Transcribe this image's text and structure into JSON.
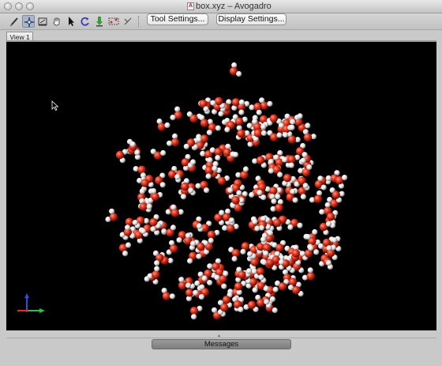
{
  "window": {
    "title": "box.xyz – Avogadro",
    "doc_icon_letter": "A"
  },
  "toolbar": {
    "tools": [
      {
        "name": "draw-tool",
        "icon": "pencil-icon",
        "active": false
      },
      {
        "name": "navigate-tool",
        "icon": "navigate-cross-icon",
        "active": true
      },
      {
        "name": "bond-centric-tool",
        "icon": "bond-centric-icon",
        "active": false
      },
      {
        "name": "manipulate-tool",
        "icon": "hand-icon",
        "active": false
      },
      {
        "name": "select-tool",
        "icon": "arrow-pointer-icon",
        "active": false
      },
      {
        "name": "auto-rotate-tool",
        "icon": "rotate-icon",
        "active": false
      },
      {
        "name": "auto-optimize-tool",
        "icon": "optimize-icon",
        "active": false
      },
      {
        "name": "measure-tool",
        "icon": "measure-icon",
        "active": false
      },
      {
        "name": "align-tool",
        "icon": "align-icon",
        "active": false
      }
    ],
    "tool_settings_label": "Tool Settings...",
    "display_settings_label": "Display Settings..."
  },
  "tabs": [
    {
      "label": "View 1"
    }
  ],
  "viewport": {
    "background": "#000000",
    "oxygen_color": "#e8341c",
    "hydrogen_color": "#e6e6e6",
    "axes": {
      "x_color": "#e03020",
      "y_color": "#2a50e8",
      "z_color": "#30c040"
    }
  },
  "bottom_panel": {
    "messages_label": "Messages"
  }
}
